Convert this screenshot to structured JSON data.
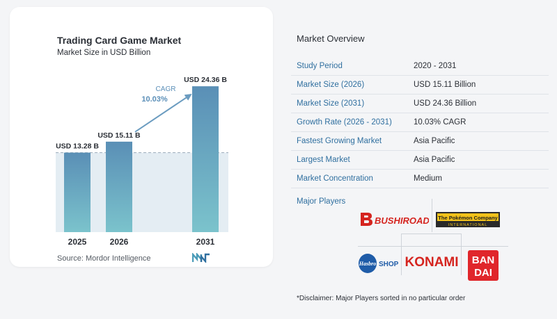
{
  "chart_data": {
    "type": "bar",
    "title": "Trading Card Game Market",
    "subtitle": "Market Size in USD Billion",
    "categories": [
      "2025",
      "2026",
      "2031"
    ],
    "values": [
      13.28,
      15.11,
      24.36
    ],
    "data_labels": [
      "USD 13.28 B",
      "USD 15.11 B",
      "USD 24.36 B"
    ],
    "cagr_label": "CAGR",
    "cagr_value": "10.03%",
    "ylim": [
      0,
      26
    ],
    "colors": {
      "bar_top": "#5a8fb6",
      "bar_bottom": "#7bc3cc",
      "band": "#e4edf3",
      "arrow": "#6b9cc0",
      "cagr_text": "#5b8fb8"
    }
  },
  "source": "Source:  Mordor Intelligence",
  "overview": {
    "title": "Market Overview",
    "rows": [
      {
        "key": "Study Period",
        "value": "2020 - 2031"
      },
      {
        "key": "Market Size (2026)",
        "value": "USD 15.11 Billion"
      },
      {
        "key": "Market Size (2031)",
        "value": "USD 24.36 Billion"
      },
      {
        "key": "Growth Rate (2026 - 2031)",
        "value": "10.03% CAGR"
      },
      {
        "key": "Fastest Growing Market",
        "value": "Asia Pacific"
      },
      {
        "key": "Largest Market",
        "value": "Asia Pacific"
      },
      {
        "key": "Market Concentration",
        "value": "Medium"
      }
    ]
  },
  "players": {
    "title": "Major Players",
    "logos": {
      "bushiroad": "BUSHIROAD",
      "pokemon_line1": "The Pokémon Company",
      "pokemon_line2": "INTERNATIONAL",
      "hasbro": "Hasbro",
      "shop": "SHOP",
      "konami": "KONAMI",
      "bandai_1": "BAN",
      "bandai_2": "DAI"
    }
  },
  "disclaimer": "*Disclaimer: Major Players sorted in no particular order"
}
